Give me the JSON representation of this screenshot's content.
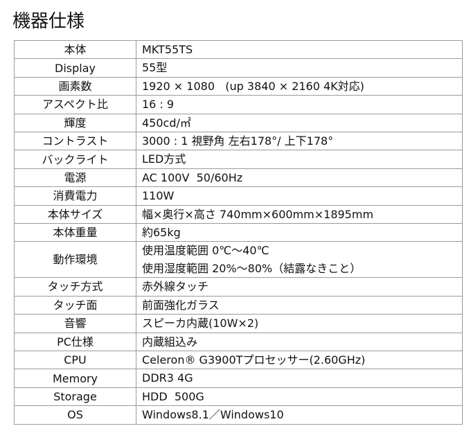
{
  "header": {
    "title": "機器仕様"
  },
  "table": {
    "rows": [
      [
        "本体",
        "MKT55TS"
      ],
      [
        "Display",
        "55型"
      ],
      [
        "画素数",
        "1920 × 1080   (up 3840 × 2160 4K対応)"
      ],
      [
        "アスペクト比",
        "16 : 9"
      ],
      [
        "輝度",
        "450cd/㎡"
      ],
      [
        "コントラスト",
        "3000 : 1 視野角 左右178°/ 上下178°"
      ],
      [
        "バックライト",
        "LED方式"
      ],
      [
        "電源",
        "AC 100V  50/60Hz"
      ],
      [
        "消費電力",
        "110W"
      ],
      [
        "本体サイズ",
        "幅×奥行×高さ 740mm×600mm×1895mm"
      ],
      [
        "本体重量",
        "約65kg"
      ],
      [
        "動作環境",
        "使用温度範囲 0℃～40℃",
        "使用湿度範囲 20%～80%（結露なきこと）"
      ],
      [
        "タッチ方式",
        "赤外線タッチ"
      ],
      [
        "タッチ面",
        "前面強化ガラス"
      ],
      [
        "音響",
        "スピーカ内蔵(10W×2)"
      ],
      [
        "PC仕様",
        "内蔵組込み"
      ],
      [
        "CPU",
        "Celeron® G3900Tプロセッサー(2.60GHz)"
      ],
      [
        "Memory",
        "DDR3 4G"
      ],
      [
        "Storage",
        "HDD  500G"
      ],
      [
        "OS",
        "Windows8.1／Windows10"
      ]
    ]
  }
}
